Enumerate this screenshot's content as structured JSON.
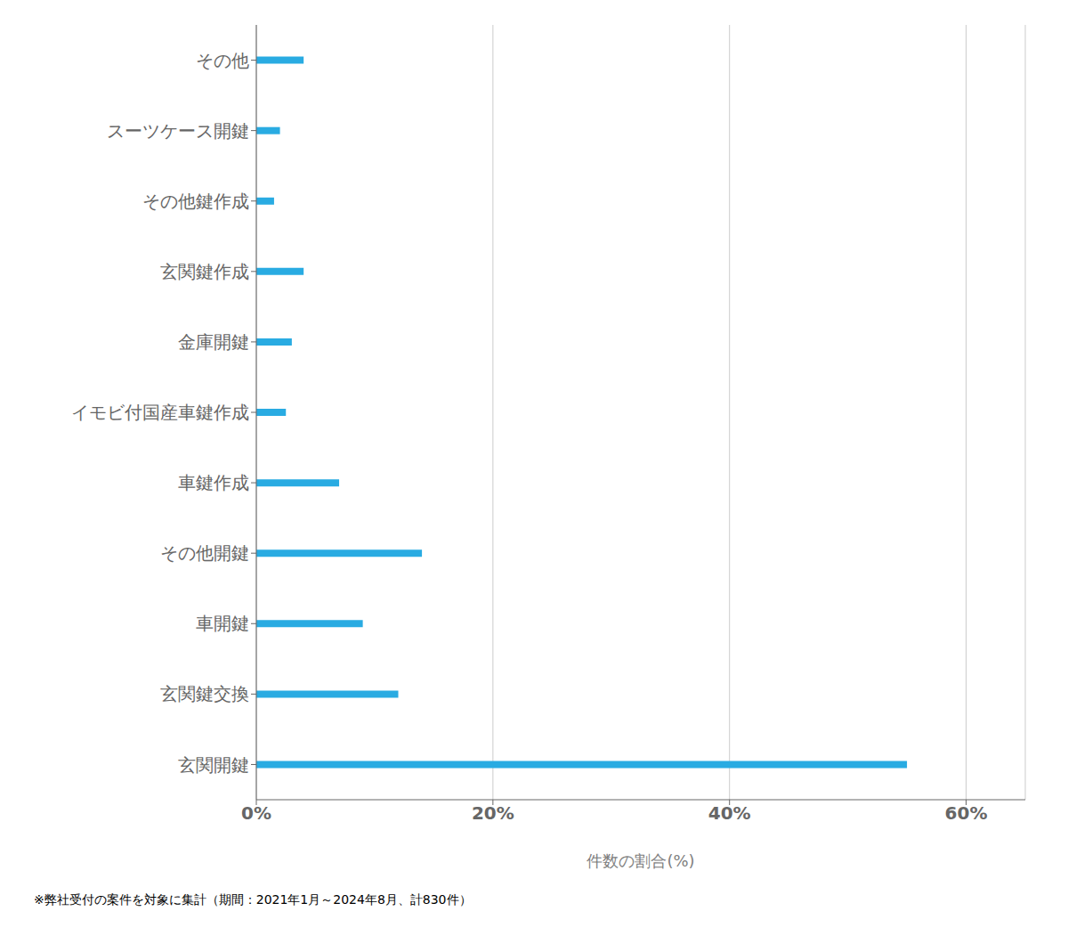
{
  "chart_data": {
    "type": "bar",
    "orientation": "horizontal",
    "categories": [
      "その他",
      "スーツケース開鍵",
      "その他鍵作成",
      "玄関鍵作成",
      "金庫開鍵",
      "イモビ付国産車鍵作成",
      "車鍵作成",
      "その他開鍵",
      "車開鍵",
      "玄関鍵交換",
      "玄関開鍵"
    ],
    "values": [
      4.0,
      2.0,
      1.5,
      4.0,
      3.0,
      2.5,
      7.0,
      14.0,
      9.0,
      12.0,
      55.0
    ],
    "color": "#29ABE2",
    "xlim": [
      0,
      65
    ],
    "xticks": [
      {
        "value": 0,
        "label": "0%"
      },
      {
        "value": 20,
        "label": "20%"
      },
      {
        "value": 40,
        "label": "40%"
      },
      {
        "value": 60,
        "label": "60%"
      }
    ],
    "xlabel": "件数の割合(%)",
    "footnote": "※弊社受付の案件を対象に集計（期間：2021年1月～2024年8月、計830件）",
    "grid": true
  }
}
